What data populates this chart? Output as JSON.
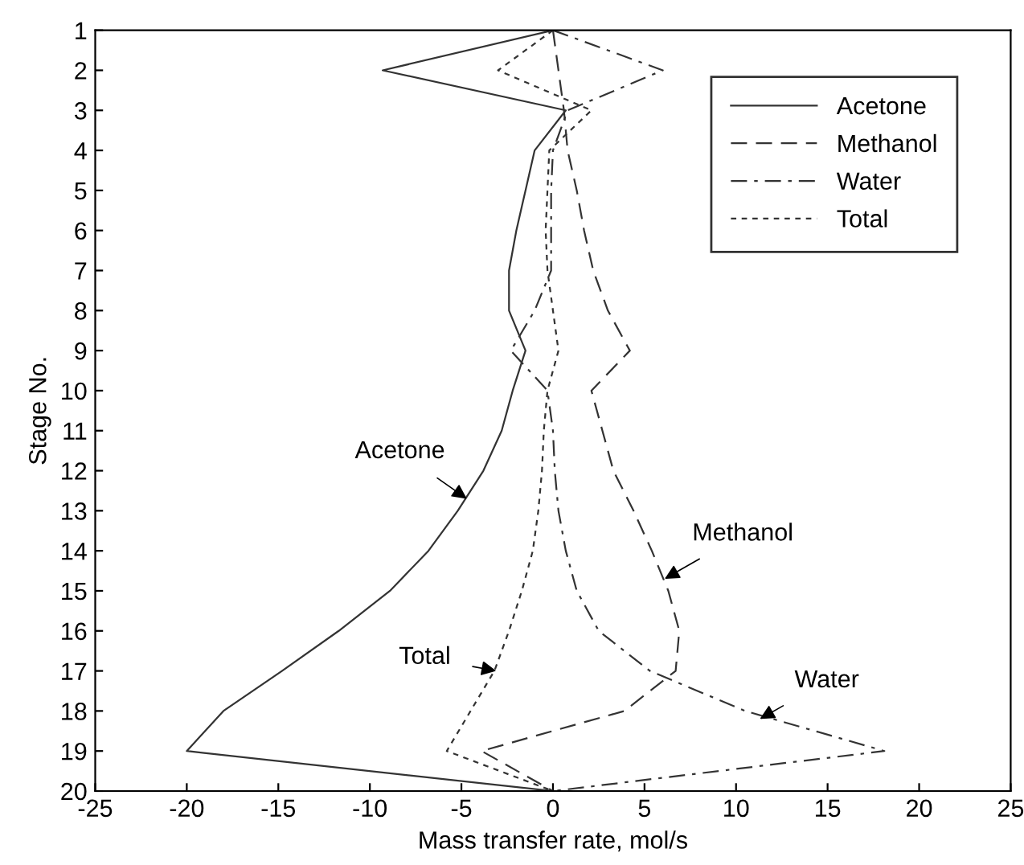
{
  "chart_data": {
    "type": "line",
    "xlabel": "Mass transfer rate, mol/s",
    "ylabel": "Stage No.",
    "series": [
      {
        "name": "Acetone",
        "color": "#333333",
        "line_style": "solid",
        "x": [
          0,
          -9.3,
          0.7,
          -1,
          -1.5,
          -2,
          -2.4,
          -2.4,
          -1.5,
          -2.2,
          -2.8,
          -3.8,
          -5.2,
          -6.8,
          -8.9,
          -11.7,
          -14.8,
          -18,
          -20,
          0
        ],
        "values": [
          1,
          2,
          3,
          4,
          5,
          6,
          7,
          8,
          9,
          10,
          11,
          12,
          13,
          14,
          15,
          16,
          17,
          18,
          19,
          20
        ]
      },
      {
        "name": "Methanol",
        "color": "#333333",
        "line_style": "longdash",
        "x": [
          0,
          0.3,
          0.6,
          0.8,
          1.3,
          1.7,
          2.2,
          3.0,
          4.2,
          2.1,
          2.7,
          3.3,
          4.4,
          5.4,
          6.3,
          6.9,
          6.7,
          3.9,
          -3.9,
          0
        ],
        "values": [
          1,
          2,
          3,
          4,
          5,
          6,
          7,
          8,
          9,
          10,
          11,
          12,
          13,
          14,
          15,
          16,
          17,
          18,
          19,
          20
        ]
      },
      {
        "name": "Water",
        "color": "#333333",
        "line_style": "dashdot",
        "x": [
          0,
          6,
          0.8,
          0,
          -0.1,
          -0.1,
          -0.1,
          -1,
          -2.3,
          -0.3,
          0,
          0.1,
          0.3,
          0.7,
          1.3,
          2.5,
          5.3,
          10.5,
          18.1,
          0
        ],
        "values": [
          1,
          2,
          3,
          4,
          5,
          6,
          7,
          8,
          9,
          10,
          11,
          12,
          13,
          14,
          15,
          16,
          17,
          18,
          19,
          20
        ]
      },
      {
        "name": "Total",
        "color": "#333333",
        "line_style": "dashed",
        "x": [
          0,
          -3,
          2.1,
          -0.2,
          -0.3,
          -0.4,
          -0.3,
          0,
          0.3,
          -0.3,
          -0.5,
          -0.6,
          -0.8,
          -1.1,
          -1.7,
          -2.4,
          -3.2,
          -4.5,
          -5.8,
          0
        ],
        "values": [
          1,
          2,
          3,
          4,
          5,
          6,
          7,
          8,
          9,
          10,
          11,
          12,
          13,
          14,
          15,
          16,
          17,
          18,
          19,
          20
        ]
      }
    ],
    "xlim": [
      -25,
      25
    ],
    "xticks": [
      -25,
      -20,
      -15,
      -10,
      -5,
      0,
      5,
      10,
      15,
      20,
      25
    ],
    "ylim": [
      20,
      1
    ],
    "yticks": [
      1,
      2,
      3,
      4,
      5,
      6,
      7,
      8,
      9,
      10,
      11,
      12,
      13,
      14,
      15,
      16,
      17,
      18,
      19,
      20
    ],
    "annotations": [
      {
        "text": "Acetone",
        "x": -4.7,
        "y": 12.7
      },
      {
        "text": "Total",
        "x": -3.1,
        "y": 17.0
      },
      {
        "text": "Methanol",
        "x": 6.1,
        "y": 14.7
      },
      {
        "text": "Water",
        "x": 11.3,
        "y": 18.2
      }
    ],
    "grid": false,
    "legend": "top right",
    "marker": "none"
  }
}
